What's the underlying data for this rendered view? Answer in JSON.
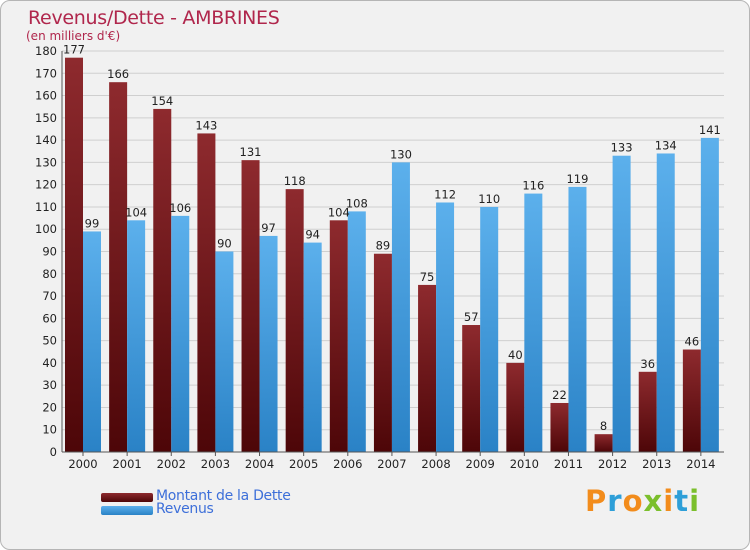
{
  "chart_data": {
    "type": "bar",
    "title": "Revenus/Dette - AMBRINES",
    "subtitle": "(en milliers d'€)",
    "categories": [
      "2000",
      "2001",
      "2002",
      "2003",
      "2004",
      "2005",
      "2006",
      "2007",
      "2008",
      "2009",
      "2010",
      "2011",
      "2012",
      "2013",
      "2014"
    ],
    "series": [
      {
        "name": "Montant de la Dette",
        "color": "#7a1a1d",
        "values": [
          177,
          166,
          154,
          143,
          131,
          118,
          104,
          89,
          75,
          57,
          40,
          22,
          8,
          36,
          46
        ]
      },
      {
        "name": "Revenus",
        "color": "#4ea6e6",
        "values": [
          99,
          104,
          106,
          90,
          97,
          94,
          108,
          130,
          112,
          110,
          116,
          119,
          133,
          134,
          141
        ]
      }
    ],
    "ylim": [
      0,
      180
    ],
    "yticks": [
      0,
      10,
      20,
      30,
      40,
      50,
      60,
      70,
      80,
      90,
      100,
      110,
      120,
      130,
      140,
      150,
      160,
      170,
      180
    ],
    "grid": true,
    "legend": "bottom-left"
  },
  "logo": {
    "text": "Proxiti",
    "colors": [
      "#f28c1c",
      "#2e9fd8",
      "#f28c1c",
      "#7bbf2c",
      "#f28c1c",
      "#2e9fd8",
      "#7bbf2c"
    ]
  }
}
